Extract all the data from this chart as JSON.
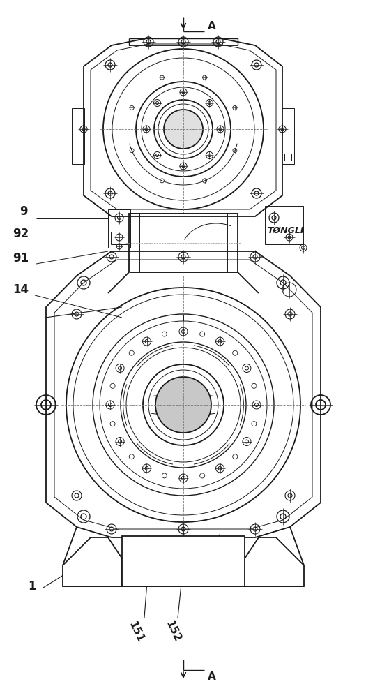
{
  "bg_color": "#ffffff",
  "line_color": "#1a1a1a",
  "labels": {
    "A_top": "A",
    "A_bottom": "A",
    "label_9": "9",
    "label_92": "92",
    "label_91": "91",
    "label_14": "14",
    "label_1": "1",
    "label_151": "151",
    "label_152": "152",
    "brand": "TØNGLI"
  },
  "figsize": [
    5.25,
    10.0
  ],
  "dpi": 100
}
